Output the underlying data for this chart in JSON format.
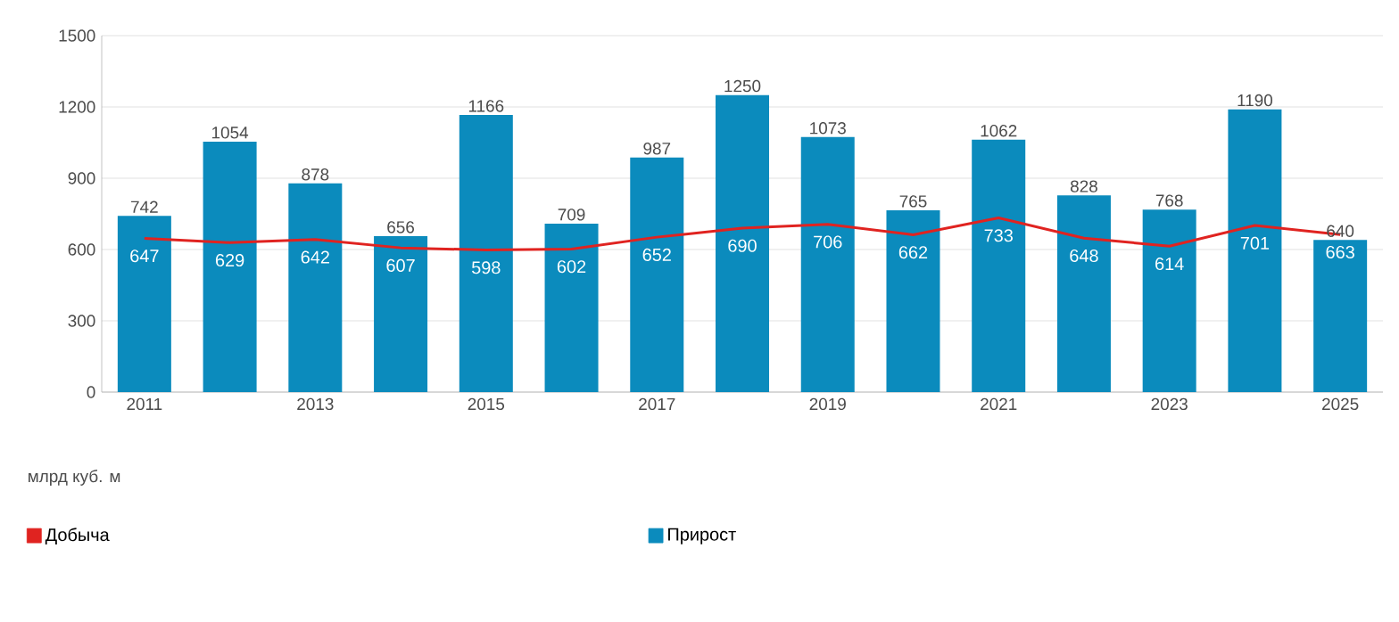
{
  "chart_data": {
    "type": "bar",
    "categories": [
      "2011",
      null,
      "2013",
      null,
      "2015",
      null,
      "2017",
      null,
      "2019",
      null,
      "2021",
      null,
      "2023",
      null,
      "2025"
    ],
    "series": [
      {
        "name": "Добыча",
        "type": "line",
        "color": "#e02320",
        "values": [
          647,
          629,
          642,
          607,
          598,
          602,
          652,
          690,
          706,
          662,
          733,
          648,
          614,
          701,
          663
        ]
      },
      {
        "name": "Прирост",
        "color": "#0b8bbd",
        "values": [
          742,
          1054,
          878,
          656,
          1166,
          709,
          987,
          1250,
          1073,
          765,
          1062,
          828,
          768,
          1190,
          640
        ]
      }
    ],
    "ylim": [
      0,
      1500
    ],
    "yticks": [
      0,
      300,
      600,
      900,
      1200,
      1500
    ],
    "grid": "y",
    "legend": "bottom",
    "data_labels": true,
    "marker": "none",
    "annotations": [
      "млрд куб. м"
    ]
  }
}
